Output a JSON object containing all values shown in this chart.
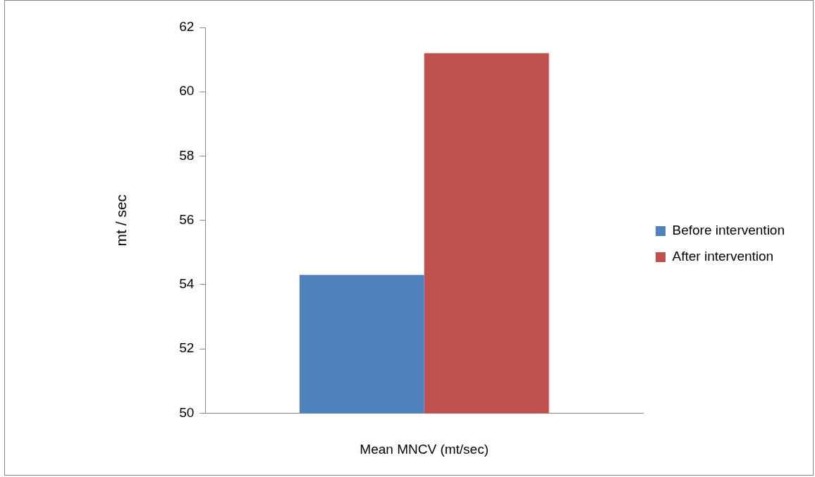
{
  "chart_data": {
    "type": "bar",
    "xlabel": "Mean MNCV (mt/sec)",
    "ylabel": "mt / sec",
    "categories": [
      null
    ],
    "series": [
      {
        "name": "Before intervention",
        "color": "#4f81bd",
        "values": [
          54.3
        ]
      },
      {
        "name": "After intervention",
        "color": "#c0504d",
        "values": [
          61.2
        ]
      }
    ],
    "ylim": [
      50,
      62
    ],
    "yticks": [
      50,
      52,
      54,
      56,
      58,
      60,
      62
    ],
    "grid": false,
    "legend": "right"
  }
}
